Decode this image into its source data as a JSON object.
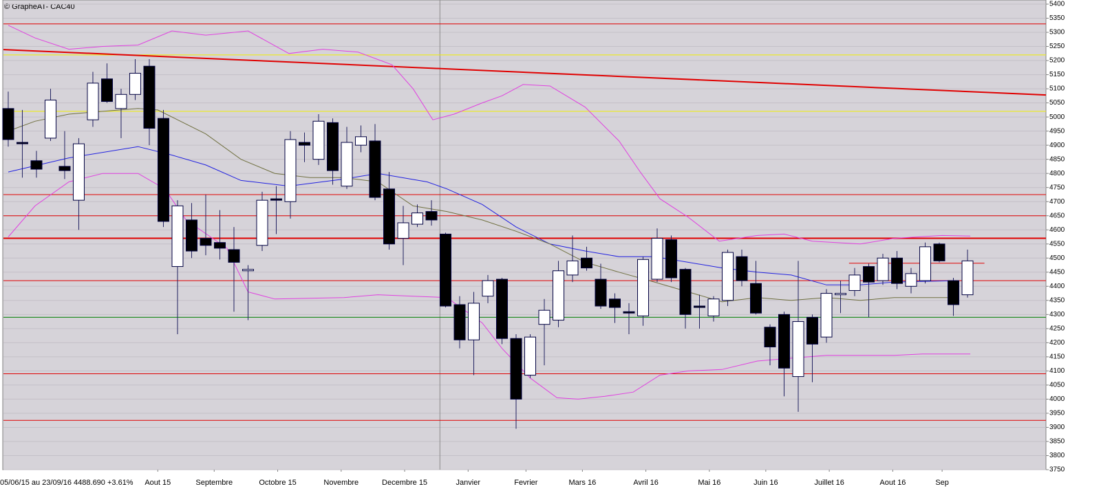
{
  "chart_data": {
    "type": "candlestick",
    "title": "© GrapheAT- CAC40",
    "subtitle": "05/06/15 au 23/09/16  4488.690  +3.61%",
    "open": [
      5030,
      4910,
      4845,
      4925,
      4825,
      4705,
      4990,
      5135,
      5030,
      5080,
      5180,
      4995,
      4470,
      4635,
      4570,
      4555,
      4530,
      4455,
      4545,
      4710,
      4700,
      4910,
      4850,
      4980,
      4755,
      4900,
      4915,
      4745,
      4570,
      4620,
      4665,
      4585,
      4335,
      4210,
      4365,
      4425,
      4215,
      4085,
      4265,
      4280,
      4440,
      4500,
      4425,
      4355,
      4310,
      4295,
      4425,
      4565,
      4460,
      4330,
      4295,
      4350,
      4505,
      4410,
      4255,
      4300,
      4080,
      4290,
      4220,
      4370,
      4385,
      4470,
      4420,
      4500,
      4400,
      4420,
      4550,
      4420,
      4370
    ],
    "high": [
      5090,
      5025,
      4880,
      5100,
      4950,
      4925,
      5160,
      5190,
      5100,
      5205,
      5205,
      5025,
      4705,
      4695,
      4725,
      4670,
      4610,
      4475,
      4735,
      4755,
      4950,
      4945,
      5010,
      4995,
      4965,
      4970,
      4975,
      4805,
      4685,
      4690,
      4705,
      4590,
      4365,
      4380,
      4440,
      4430,
      4230,
      4230,
      4355,
      4490,
      4580,
      4540,
      4480,
      4375,
      4340,
      4505,
      4605,
      4580,
      4465,
      4370,
      4365,
      4530,
      4530,
      4490,
      4265,
      4310,
      4490,
      4300,
      4390,
      4420,
      4465,
      4480,
      4515,
      4525,
      4465,
      4555,
      4555,
      4430,
      4530
    ],
    "low": [
      4895,
      4785,
      4785,
      4915,
      4780,
      4600,
      4965,
      5050,
      4925,
      5060,
      4900,
      4610,
      4230,
      4500,
      4510,
      4495,
      4310,
      4280,
      4525,
      4585,
      4640,
      4840,
      4830,
      4760,
      4745,
      4875,
      4705,
      4530,
      4475,
      4610,
      4615,
      4325,
      4180,
      4085,
      4340,
      4195,
      3895,
      4075,
      4120,
      4255,
      4415,
      4455,
      4320,
      4270,
      4230,
      4260,
      4415,
      4415,
      4250,
      4250,
      4275,
      4330,
      4400,
      4300,
      4120,
      4010,
      3955,
      4060,
      4200,
      4305,
      4365,
      4290,
      4405,
      4390,
      4375,
      4410,
      4485,
      4295,
      4360
    ],
    "close": [
      4920,
      4905,
      4815,
      5060,
      4810,
      4905,
      5120,
      5055,
      5080,
      5155,
      4960,
      4630,
      4685,
      4525,
      4545,
      4535,
      4485,
      4460,
      4705,
      4705,
      4920,
      4900,
      4985,
      4810,
      4910,
      4930,
      4715,
      4550,
      4625,
      4660,
      4635,
      4330,
      4210,
      4340,
      4420,
      4215,
      4000,
      4220,
      4315,
      4455,
      4490,
      4465,
      4330,
      4325,
      4305,
      4495,
      4570,
      4430,
      4300,
      4325,
      4355,
      4520,
      4420,
      4305,
      4185,
      4110,
      4275,
      4195,
      4375,
      4375,
      4440,
      4415,
      4500,
      4410,
      4445,
      4540,
      4490,
      4335,
      4490
    ],
    "xlim": [
      -0.34,
      73.56
    ],
    "ylim": [
      3750,
      5400
    ],
    "yticks": [
      3750,
      3800,
      3850,
      3900,
      3950,
      4000,
      4050,
      4100,
      4150,
      4200,
      4250,
      4300,
      4350,
      4400,
      4450,
      4500,
      4550,
      4600,
      4650,
      4700,
      4750,
      4800,
      4850,
      4900,
      4950,
      5000,
      5050,
      5100,
      5150,
      5200,
      5250,
      5300,
      5350,
      5400
    ],
    "xticks": [
      {
        "value": 10.6,
        "label": "Aout 15"
      },
      {
        "value": 14.6,
        "label": "Septembre"
      },
      {
        "value": 19.1,
        "label": "Octobre 15"
      },
      {
        "value": 23.6,
        "label": "Novembre"
      },
      {
        "value": 28.1,
        "label": "Decembre 15"
      },
      {
        "value": 32.6,
        "label": "Janvier"
      },
      {
        "value": 36.7,
        "label": "Fevrier"
      },
      {
        "value": 40.7,
        "label": "Mars 16"
      },
      {
        "value": 45.2,
        "label": "Avril 16"
      },
      {
        "value": 49.7,
        "label": "Mai 16"
      },
      {
        "value": 53.7,
        "label": "Juin 16"
      },
      {
        "value": 58.2,
        "label": "Juillet 16"
      },
      {
        "value": 62.7,
        "label": "Aout 16"
      },
      {
        "value": 66.2,
        "label": "Sep"
      }
    ],
    "grid": true,
    "lines": [
      {
        "color": "#2020e0",
        "x": [
          0,
          4.3,
          9.2,
          11.6,
          14,
          16.5,
          19.9,
          23.8,
          26.2,
          29.7,
          31.1,
          33.6,
          36,
          38.4,
          40.9,
          43.3,
          45.8,
          48.2,
          50.6,
          53.1,
          55.5,
          58,
          60.4,
          62.8,
          67.2
        ],
        "values": [
          4805,
          4855,
          4895,
          4865,
          4830,
          4775,
          4755,
          4780,
          4800,
          4770,
          4745,
          4690,
          4610,
          4550,
          4525,
          4505,
          4505,
          4485,
          4465,
          4450,
          4440,
          4405,
          4405,
          4415,
          4420
        ]
      },
      {
        "color": "#707040",
        "x": [
          0,
          1.9,
          4.3,
          6.7,
          9.2,
          10.6,
          14,
          16.5,
          18.9,
          21.4,
          23.8,
          26.2,
          28.7,
          31.1,
          33.6,
          36,
          38.4,
          40.9,
          43.3,
          45.8,
          48.2,
          50.6,
          53.1,
          55.5,
          58,
          60.4,
          62.8,
          67.2
        ],
        "values": [
          4950,
          4985,
          5010,
          5020,
          5030,
          5025,
          4940,
          4850,
          4800,
          4785,
          4785,
          4770,
          4685,
          4665,
          4635,
          4595,
          4550,
          4485,
          4450,
          4415,
          4380,
          4345,
          4360,
          4350,
          4360,
          4350,
          4360,
          4360
        ]
      },
      {
        "color": "#e040e0",
        "x": [
          0,
          1.9,
          4.3,
          6.7,
          9.2,
          11.6,
          14,
          17,
          19.9,
          22.3,
          24.8,
          27.2,
          28.7,
          30.1,
          31.6,
          33.6,
          35,
          36.5,
          38.4,
          40.9,
          43.3,
          44.8,
          46.2,
          48.2,
          50.4,
          53.1,
          55,
          57,
          60.4,
          62.8,
          66.2,
          68.2
        ],
        "values": [
          5325,
          5280,
          5240,
          5250,
          5255,
          5305,
          5290,
          5305,
          5225,
          5240,
          5230,
          5185,
          5100,
          4990,
          5010,
          5050,
          5075,
          5115,
          5110,
          5035,
          4915,
          4805,
          4710,
          4645,
          4560,
          4580,
          4585,
          4560,
          4550,
          4570,
          4580,
          4578
        ]
      },
      {
        "color": "#e040e0",
        "x": [
          0,
          1.9,
          4.3,
          6.7,
          9.2,
          11.1,
          12.6,
          15.5,
          17,
          18.9,
          23.8,
          26.2,
          28.7,
          31.1,
          33.6,
          35,
          37,
          38.9,
          40.4,
          42.3,
          44.3,
          46.2,
          48.2,
          50.6,
          53.1,
          55.5,
          58,
          60.4,
          62.8,
          64.8,
          68.2
        ],
        "values": [
          4575,
          4685,
          4770,
          4800,
          4800,
          4745,
          4635,
          4535,
          4380,
          4355,
          4360,
          4370,
          4365,
          4360,
          4270,
          4180,
          4075,
          4005,
          4000,
          4010,
          4025,
          4085,
          4100,
          4105,
          4135,
          4145,
          4155,
          4155,
          4155,
          4160,
          4160
        ]
      }
    ],
    "levels": [
      {
        "value": 5330,
        "color": "#e00000"
      },
      {
        "value": 5220,
        "color": "#f0f000"
      },
      {
        "value": 5020,
        "color": "#f0f000"
      },
      {
        "value": 4725,
        "color": "#e00000"
      },
      {
        "value": 4650,
        "color": "#e00000"
      },
      {
        "value": 4570,
        "color": "#e00000",
        "width": 2
      },
      {
        "value": 4420,
        "color": "#e00000"
      },
      {
        "value": 4290,
        "color": "#008000"
      },
      {
        "value": 4090,
        "color": "#e00000"
      },
      {
        "value": 3925,
        "color": "#e00000"
      }
    ],
    "segments": [
      {
        "color": "#e00000",
        "width": 2,
        "x": [
          -0.34,
          73.56
        ],
        "values": [
          5239,
          5078
        ]
      },
      {
        "color": "#e00000",
        "width": 1,
        "x": [
          59.6,
          69.2
        ],
        "values": [
          4482,
          4482
        ]
      }
    ],
    "vline": 30.6
  }
}
